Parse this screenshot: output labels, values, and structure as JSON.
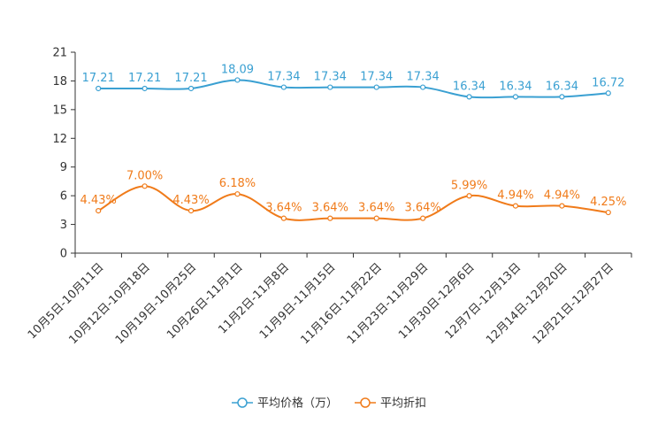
{
  "chart_data": {
    "type": "line",
    "title": "",
    "xlabel": "",
    "ylabel": "",
    "ylim": [
      0,
      21
    ],
    "yticks": [
      0,
      3,
      6,
      9,
      12,
      15,
      18,
      21
    ],
    "grid": false,
    "legend_position": "bottom",
    "categories": [
      "10月5日-10月11日",
      "10月12日-10月18日",
      "10月19日-10月25日",
      "10月26日-11月1日",
      "11月2日-11月8日",
      "11月9日-11月15日",
      "11月16日-11月22日",
      "11月23日-11月29日",
      "11月30日-12月6日",
      "12月7日-12月13日",
      "12月14日-12月20日",
      "12月21日-12月27日"
    ],
    "series": [
      {
        "name": "平均价格（万）",
        "color": "#3aa0d2",
        "values": [
          17.21,
          17.21,
          17.21,
          18.09,
          17.34,
          17.34,
          17.34,
          17.34,
          16.34,
          16.34,
          16.34,
          16.72
        ],
        "labels": [
          "17.21",
          "17.21",
          "17.21",
          "18.09",
          "17.34",
          "17.34",
          "17.34",
          "17.34",
          "16.34",
          "16.34",
          "16.34",
          "16.72"
        ]
      },
      {
        "name": "平均折扣",
        "color": "#f07b1a",
        "values": [
          4.43,
          7.0,
          4.43,
          6.18,
          3.64,
          3.64,
          3.64,
          3.64,
          5.99,
          4.94,
          4.94,
          4.25
        ],
        "labels": [
          "4.43%",
          "7.00%",
          "4.43%",
          "6.18%",
          "3.64%",
          "3.64%",
          "3.64%",
          "3.64%",
          "5.99%",
          "4.94%",
          "4.94%",
          "4.25%"
        ]
      }
    ]
  }
}
